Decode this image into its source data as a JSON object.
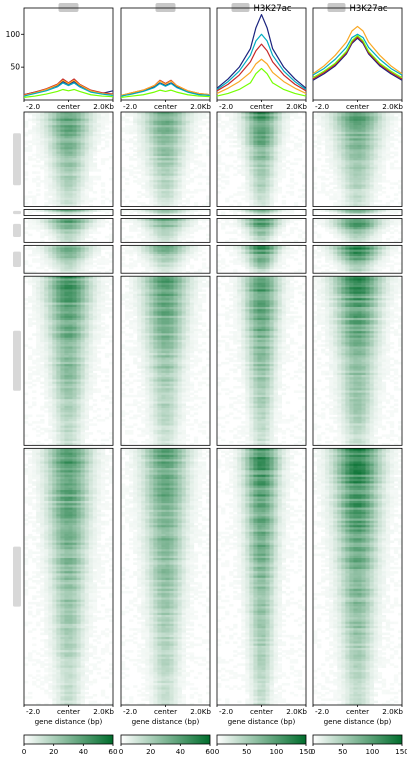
{
  "chart_data": {
    "type": "heatmap",
    "columns": [
      {
        "title": "",
        "title_suffix": ""
      },
      {
        "title": "",
        "title_suffix": ""
      },
      {
        "title": "",
        "title_suffix": "H3K27ac"
      },
      {
        "title": "",
        "title_suffix": "H3K27ac"
      }
    ],
    "profile": {
      "ylim": [
        0,
        140
      ],
      "yticks": [
        50,
        100
      ],
      "x": [
        -2.0,
        -1.5,
        -1.0,
        -0.5,
        -0.25,
        0,
        0.25,
        0.5,
        1.0,
        1.5,
        2.0
      ],
      "panels": [
        {
          "series": [
            {
              "color": "#1a237e",
              "values": [
                8,
                12,
                16,
                22,
                28,
                24,
                28,
                22,
                14,
                10,
                14
              ]
            },
            {
              "color": "#c62828",
              "values": [
                8,
                12,
                17,
                24,
                32,
                26,
                32,
                24,
                15,
                11,
                9
              ]
            },
            {
              "color": "#f9a825",
              "values": [
                7,
                11,
                16,
                23,
                30,
                25,
                30,
                23,
                14,
                10,
                8
              ]
            },
            {
              "color": "#00acc1",
              "values": [
                6,
                10,
                14,
                20,
                26,
                22,
                26,
                20,
                12,
                9,
                7
              ]
            },
            {
              "color": "#76ff03",
              "values": [
                4,
                6,
                9,
                13,
                16,
                14,
                16,
                13,
                8,
                6,
                5
              ]
            }
          ]
        },
        {
          "series": [
            {
              "color": "#1a237e",
              "values": [
                6,
                10,
                14,
                20,
                26,
                22,
                26,
                20,
                13,
                9,
                7
              ]
            },
            {
              "color": "#c62828",
              "values": [
                7,
                11,
                15,
                22,
                30,
                25,
                30,
                22,
                14,
                10,
                8
              ]
            },
            {
              "color": "#f9a825",
              "values": [
                7,
                11,
                15,
                22,
                29,
                24,
                29,
                22,
                14,
                10,
                8
              ]
            },
            {
              "color": "#00acc1",
              "values": [
                6,
                9,
                13,
                19,
                25,
                21,
                25,
                19,
                12,
                8,
                7
              ]
            },
            {
              "color": "#76ff03",
              "values": [
                4,
                6,
                8,
                12,
                15,
                13,
                15,
                12,
                8,
                6,
                5
              ]
            }
          ]
        },
        {
          "series": [
            {
              "color": "#1a237e",
              "values": [
                18,
                32,
                50,
                78,
                110,
                130,
                110,
                78,
                50,
                32,
                18
              ]
            },
            {
              "color": "#00acc1",
              "values": [
                16,
                28,
                44,
                68,
                90,
                100,
                90,
                68,
                44,
                28,
                16
              ]
            },
            {
              "color": "#c62828",
              "values": [
                14,
                24,
                38,
                58,
                75,
                85,
                75,
                58,
                38,
                24,
                14
              ]
            },
            {
              "color": "#f9a825",
              "values": [
                10,
                18,
                28,
                42,
                55,
                62,
                55,
                42,
                28,
                18,
                10
              ]
            },
            {
              "color": "#76ff03",
              "values": [
                6,
                10,
                16,
                26,
                40,
                48,
                40,
                26,
                16,
                10,
                6
              ]
            }
          ]
        },
        {
          "series": [
            {
              "color": "#f9a825",
              "values": [
                40,
                52,
                68,
                88,
                105,
                112,
                105,
                88,
                68,
                52,
                40
              ]
            },
            {
              "color": "#00acc1",
              "values": [
                38,
                48,
                62,
                80,
                95,
                100,
                95,
                80,
                62,
                48,
                38
              ]
            },
            {
              "color": "#1a237e",
              "values": [
                30,
                40,
                52,
                70,
                86,
                94,
                86,
                70,
                52,
                40,
                30
              ]
            },
            {
              "color": "#c62828",
              "values": [
                32,
                42,
                54,
                72,
                88,
                96,
                88,
                72,
                54,
                42,
                32
              ]
            },
            {
              "color": "#76ff03",
              "values": [
                34,
                44,
                56,
                74,
                90,
                98,
                90,
                74,
                56,
                44,
                34
              ]
            }
          ]
        }
      ]
    },
    "x_ticklabels": [
      "-2.0",
      "center",
      "2.0Kb"
    ],
    "xlabel": "gene distance (bp)",
    "heatmap": {
      "groups": [
        {
          "label": "",
          "rel_size": 95
        },
        {
          "label": "",
          "rel_size": 6
        },
        {
          "label": "",
          "rel_size": 24
        },
        {
          "label": "",
          "rel_size": 28
        },
        {
          "label": "",
          "rel_size": 170
        },
        {
          "label": "",
          "rel_size": 258
        }
      ],
      "columns": [
        {
          "max": 60,
          "peak_intensity": [
            0.55,
            0.45,
            0.55,
            0.5,
            0.62,
            0.6
          ],
          "peak_width": 0.28
        },
        {
          "max": 60,
          "peak_intensity": [
            0.5,
            0.45,
            0.5,
            0.45,
            0.55,
            0.55
          ],
          "peak_width": 0.28
        },
        {
          "max": 150,
          "peak_intensity": [
            0.6,
            0.55,
            0.65,
            0.7,
            0.6,
            0.65
          ],
          "peak_width": 0.22
        },
        {
          "max": 150,
          "peak_intensity": [
            0.55,
            0.5,
            0.7,
            0.75,
            0.65,
            0.7
          ],
          "peak_width": 0.3
        }
      ]
    },
    "colorbars": [
      {
        "ticks": [
          "0",
          "20",
          "40",
          "60"
        ],
        "values": [
          0,
          20,
          40,
          60
        ],
        "max": 60
      },
      {
        "ticks": [
          "0",
          "20",
          "40",
          "60"
        ],
        "values": [
          0,
          20,
          40,
          60
        ],
        "max": 60
      },
      {
        "ticks": [
          "0",
          "50",
          "100",
          "150"
        ],
        "values": [
          0,
          50,
          100,
          150
        ],
        "max": 150
      },
      {
        "ticks": [
          "0",
          "50",
          "100",
          "150"
        ],
        "values": [
          0,
          50,
          100,
          150
        ],
        "max": 150
      }
    ],
    "colormap": [
      "#ffffff",
      "#006d2c"
    ],
    "grid": false
  }
}
